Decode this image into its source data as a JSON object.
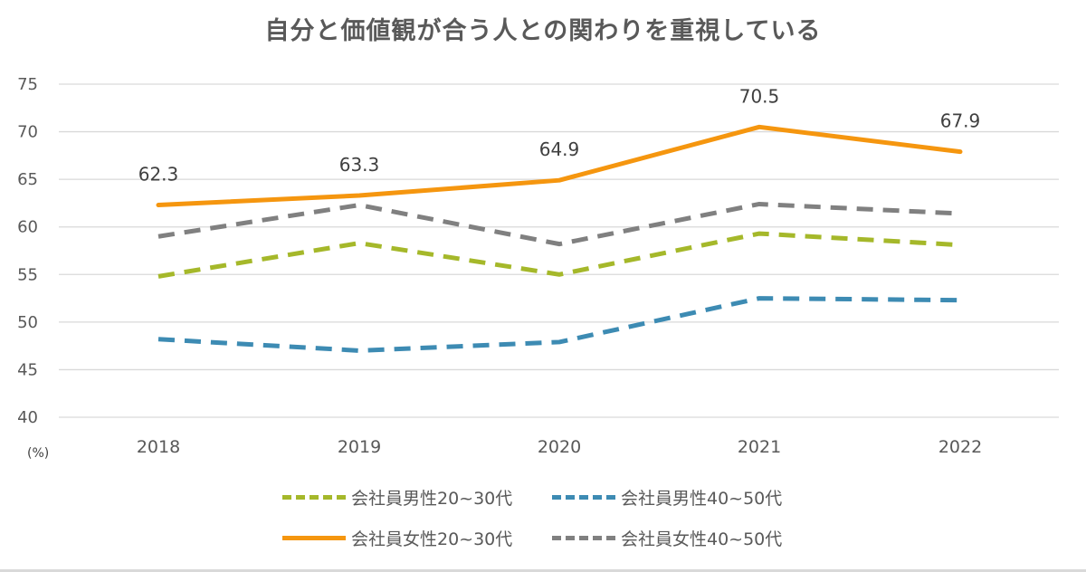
{
  "chart_data": {
    "type": "line",
    "title": "自分と価値観が合う人との関わりを重視している",
    "unit_label": "(%)",
    "categories": [
      "2018",
      "2019",
      "2020",
      "2021",
      "2022"
    ],
    "y_ticks": [
      "40",
      "45",
      "50",
      "55",
      "60",
      "65",
      "70",
      "75"
    ],
    "ylim": [
      40,
      75
    ],
    "grid": true,
    "legend_position": "bottom",
    "series": [
      {
        "name": "会社員男性20~30代",
        "values": [
          54.8,
          58.3,
          55.0,
          59.3,
          58.1
        ],
        "color": "#a5b82a",
        "style": "dashed",
        "data_labels": false
      },
      {
        "name": "会社員男性40~50代",
        "values": [
          48.2,
          47.0,
          47.9,
          52.5,
          52.3
        ],
        "color": "#3d8bb3",
        "style": "dashed",
        "data_labels": false
      },
      {
        "name": "会社員女性20~30代",
        "values": [
          62.3,
          63.3,
          64.9,
          70.5,
          67.9
        ],
        "color": "#f5960f",
        "style": "solid",
        "data_labels": true
      },
      {
        "name": "会社員女性40~50代",
        "values": [
          59.0,
          62.3,
          58.2,
          62.4,
          61.4
        ],
        "color": "#808080",
        "style": "dashed",
        "data_labels": false
      }
    ]
  }
}
